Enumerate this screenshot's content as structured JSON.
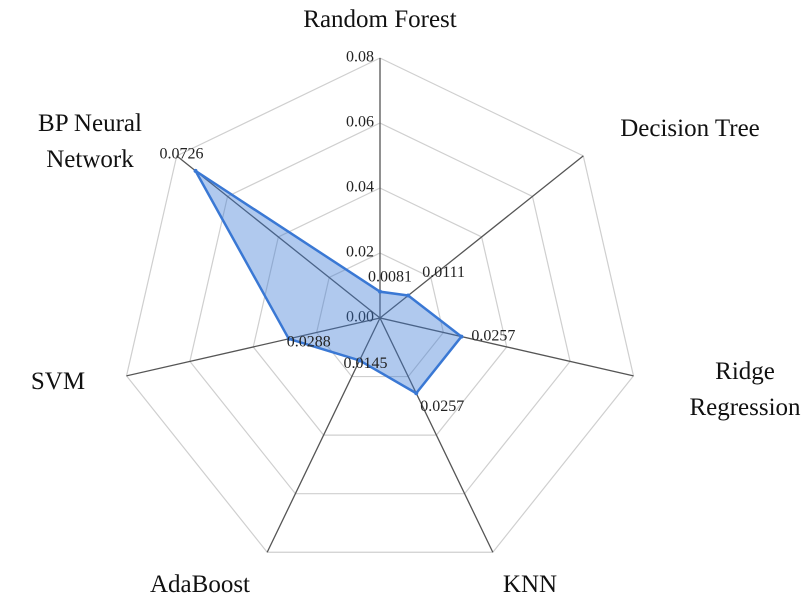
{
  "chart_data": {
    "type": "radar",
    "categories": [
      "Random Forest",
      "Decision Tree",
      "Ridge Regression",
      "KNN",
      "AdaBoost",
      "SVM",
      "BP Neural Network"
    ],
    "values": [
      0.0081,
      0.0111,
      0.0257,
      0.0257,
      0.0145,
      0.0288,
      0.0726
    ],
    "value_labels": [
      "0.0081",
      "0.0111",
      "0.0257",
      "0.0257",
      "0.0145",
      "0.0288",
      "0.0726"
    ],
    "color": "#3a78d4",
    "ylim": [
      0,
      0.08
    ],
    "yticks": [
      {
        "value": 0,
        "label": "0.00"
      },
      {
        "value": 0.02,
        "label": "0.02"
      },
      {
        "value": 0.04,
        "label": "0.04"
      },
      {
        "value": 0.06,
        "label": "0.06"
      },
      {
        "value": 0.08,
        "label": "0.08"
      }
    ],
    "grid": true
  }
}
